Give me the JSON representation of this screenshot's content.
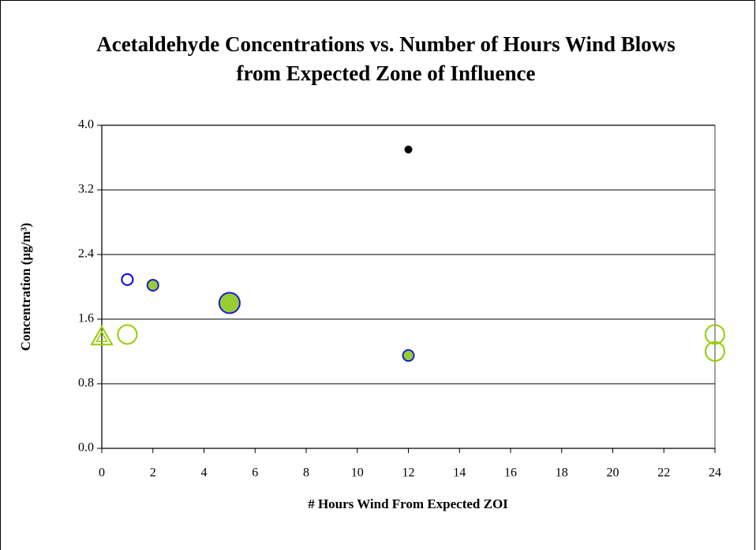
{
  "chart_data": {
    "type": "scatter",
    "title": "Acetaldehyde Concentrations vs. Number of Hours Wind Blows from Expected Zone of Influence",
    "x_label": "# Hours Wind From Expected ZOI",
    "y_label": "Concentration (µg/m³)",
    "xlim": [
      0,
      24
    ],
    "xticks": [
      0,
      2,
      4,
      6,
      8,
      10,
      12,
      14,
      16,
      18,
      20,
      22,
      24
    ],
    "ylim": [
      0,
      4
    ],
    "yticks": [
      {
        "value": 0,
        "label": "0.0"
      },
      {
        "value": 0.8,
        "label": "0.8"
      },
      {
        "value": 1.6,
        "label": "1.6"
      },
      {
        "value": 2.4,
        "label": "2.4"
      },
      {
        "value": 3.2,
        "label": "3.2"
      },
      {
        "value": 4,
        "label": "4.0"
      }
    ],
    "grid": true,
    "series": [
      {
        "marker": "circle",
        "fill": "#000000",
        "color": "#000000",
        "size": 4,
        "x": [
          12
        ],
        "values": [
          3.7
        ]
      },
      {
        "marker": "circle",
        "fill": "none",
        "color": "#0000ee",
        "size": 7,
        "x": [
          1
        ],
        "values": [
          2.09
        ]
      },
      {
        "marker": "circle",
        "fill": "#99cc33",
        "color": "#1c1ccc",
        "size": 7,
        "x": [
          2,
          12
        ],
        "values": [
          2.02,
          1.15
        ]
      },
      {
        "marker": "circle",
        "fill": "#99cc33",
        "color": "#1c1ccc",
        "size": 13,
        "x": [
          5
        ],
        "values": [
          1.8
        ]
      },
      {
        "marker": "circle",
        "fill": "none",
        "color": "#99cc00",
        "size": 12,
        "x": [
          1,
          24,
          24
        ],
        "values": [
          1.41,
          1.41,
          1.2
        ]
      },
      {
        "marker": "triangle",
        "fill": "none",
        "color": "#99cc00",
        "size": 13,
        "x": [
          0
        ],
        "values": [
          1.38
        ]
      }
    ]
  }
}
